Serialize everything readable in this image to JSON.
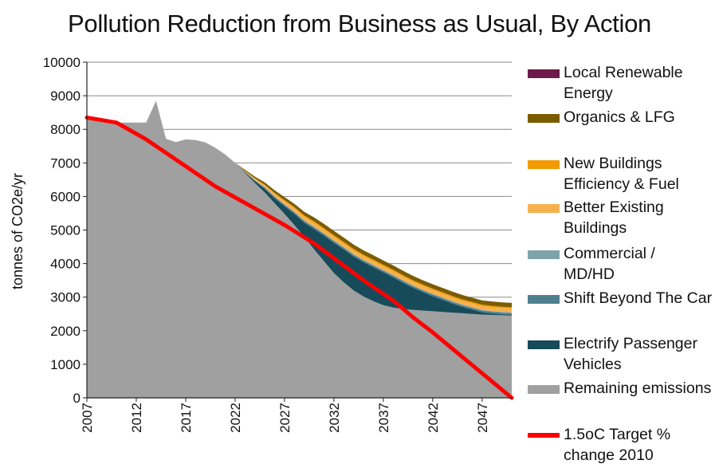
{
  "chart_data": {
    "type": "area",
    "stacked": true,
    "title": "Pollution Reduction from Business as Usual, By Action",
    "ylabel": "tonnes of CO2e/yr",
    "xlabel": "",
    "ylim": [
      0,
      10000
    ],
    "yticks": [
      0,
      1000,
      2000,
      3000,
      4000,
      5000,
      6000,
      7000,
      8000,
      9000,
      10000
    ],
    "xlim": [
      2007,
      2050
    ],
    "xticks": [
      2007,
      2012,
      2017,
      2022,
      2027,
      2032,
      2037,
      2042,
      2047
    ],
    "gridlines": true,
    "x": [
      2007,
      2008,
      2009,
      2010,
      2011,
      2012,
      2013,
      2014,
      2015,
      2016,
      2017,
      2018,
      2019,
      2020,
      2021,
      2022,
      2023,
      2024,
      2025,
      2026,
      2027,
      2028,
      2029,
      2030,
      2031,
      2032,
      2033,
      2034,
      2035,
      2036,
      2037,
      2038,
      2039,
      2040,
      2041,
      2042,
      2043,
      2044,
      2045,
      2046,
      2047,
      2048,
      2049,
      2050
    ],
    "series": [
      {
        "name": "Remaining emissions",
        "color": "#a0a0a0",
        "values": [
          8300,
          8260,
          8200,
          8200,
          8200,
          8200,
          8200,
          8850,
          7720,
          7620,
          7700,
          7680,
          7610,
          7450,
          7250,
          7000,
          6700,
          6400,
          6120,
          5800,
          5480,
          5150,
          4800,
          4420,
          4070,
          3720,
          3440,
          3200,
          3020,
          2880,
          2760,
          2690,
          2650,
          2620,
          2600,
          2580,
          2560,
          2540,
          2520,
          2500,
          2480,
          2470,
          2460,
          2450
        ]
      },
      {
        "name": "Electrify Passenger Vehicles",
        "color": "#174b5a",
        "values": [
          0,
          0,
          0,
          0,
          0,
          0,
          0,
          0,
          0,
          0,
          0,
          0,
          0,
          0,
          0,
          0,
          25,
          60,
          110,
          150,
          230,
          330,
          420,
          610,
          760,
          900,
          980,
          1010,
          1020,
          1010,
          980,
          900,
          780,
          660,
          550,
          450,
          360,
          270,
          190,
          130,
          70,
          45,
          30,
          25
        ]
      },
      {
        "name": "Shift Beyond The Car",
        "color": "#4e7f8e",
        "values": [
          0,
          0,
          0,
          0,
          0,
          0,
          0,
          0,
          0,
          0,
          0,
          0,
          0,
          0,
          0,
          0,
          10,
          20,
          30,
          35,
          40,
          45,
          48,
          50,
          50,
          50,
          50,
          50,
          50,
          50,
          50,
          50,
          50,
          50,
          50,
          50,
          50,
          50,
          50,
          50,
          50,
          50,
          50,
          50
        ]
      },
      {
        "name": "Commercial / MD/HD",
        "color": "#7fa3aa",
        "values": [
          0,
          0,
          0,
          0,
          0,
          0,
          0,
          0,
          0,
          0,
          0,
          0,
          0,
          0,
          0,
          0,
          5,
          10,
          15,
          20,
          20,
          20,
          20,
          20,
          20,
          20,
          20,
          20,
          20,
          20,
          20,
          20,
          20,
          20,
          20,
          20,
          20,
          20,
          20,
          20,
          20,
          20,
          20,
          20
        ]
      },
      {
        "name": "Better Existing Buildings",
        "color": "#f6b14f",
        "values": [
          0,
          0,
          0,
          0,
          0,
          0,
          0,
          0,
          0,
          0,
          0,
          0,
          0,
          0,
          0,
          0,
          20,
          40,
          60,
          80,
          95,
          105,
          110,
          115,
          115,
          115,
          115,
          115,
          115,
          115,
          115,
          115,
          115,
          115,
          115,
          115,
          115,
          115,
          115,
          115,
          115,
          115,
          115,
          115
        ]
      },
      {
        "name": "New Buildings Efficiency & Fuel",
        "color": "#f39a00",
        "values": [
          0,
          0,
          0,
          0,
          0,
          0,
          0,
          0,
          0,
          0,
          0,
          0,
          0,
          0,
          0,
          0,
          5,
          10,
          15,
          20,
          25,
          30,
          35,
          40,
          40,
          40,
          40,
          40,
          40,
          40,
          40,
          40,
          40,
          40,
          40,
          40,
          40,
          40,
          40,
          40,
          40,
          40,
          40,
          40
        ]
      },
      {
        "name": "Organics & LFG",
        "color": "#7b5c00",
        "values": [
          0,
          0,
          0,
          0,
          0,
          0,
          0,
          0,
          0,
          0,
          0,
          0,
          0,
          0,
          0,
          0,
          30,
          50,
          70,
          80,
          90,
          100,
          110,
          120,
          125,
          130,
          130,
          130,
          130,
          130,
          130,
          130,
          130,
          130,
          130,
          130,
          130,
          130,
          130,
          130,
          130,
          130,
          130,
          130
        ]
      },
      {
        "name": "Local Renewable Energy",
        "color": "#6b1a4a",
        "values": [
          0,
          0,
          0,
          0,
          0,
          0,
          0,
          0,
          0,
          0,
          0,
          0,
          0,
          0,
          0,
          0,
          0,
          0,
          0,
          0,
          0,
          0,
          0,
          0,
          0,
          0,
          0,
          0,
          0,
          0,
          0,
          0,
          0,
          0,
          0,
          0,
          0,
          0,
          0,
          0,
          0,
          0,
          0,
          0
        ]
      }
    ],
    "target_line": {
      "name": "1.5oC Target % change 2010",
      "color": "#ff0000",
      "x": [
        2007,
        2008,
        2009,
        2010,
        2013,
        2020,
        2027,
        2030,
        2035,
        2038,
        2040,
        2042,
        2050
      ],
      "values": [
        8350,
        8300,
        8250,
        8200,
        7700,
        6300,
        5150,
        4600,
        3500,
        2900,
        2400,
        1950,
        0
      ]
    }
  },
  "legend": {
    "items": [
      {
        "label": "Local Renewable\nEnergy",
        "color": "#6b1a4a",
        "kind": "area"
      },
      {
        "label": "Organics & LFG",
        "color": "#7b5c00",
        "kind": "area"
      },
      {
        "label": "New Buildings\nEfficiency & Fuel",
        "color": "#f39a00",
        "kind": "area"
      },
      {
        "label": "Better Existing\nBuildings",
        "color": "#f6b14f",
        "kind": "area"
      },
      {
        "label": "Commercial /\nMD/HD",
        "color": "#7fa3aa",
        "kind": "area"
      },
      {
        "label": "Shift Beyond The Car",
        "color": "#4e7f8e",
        "kind": "area"
      },
      {
        "label": "Electrify Passenger\nVehicles",
        "color": "#174b5a",
        "kind": "area"
      },
      {
        "label": "Remaining emissions",
        "color": "#a0a0a0",
        "kind": "area"
      },
      {
        "label": "1.5oC Target %\nchange 2010",
        "color": "#ff0000",
        "kind": "line"
      }
    ]
  }
}
